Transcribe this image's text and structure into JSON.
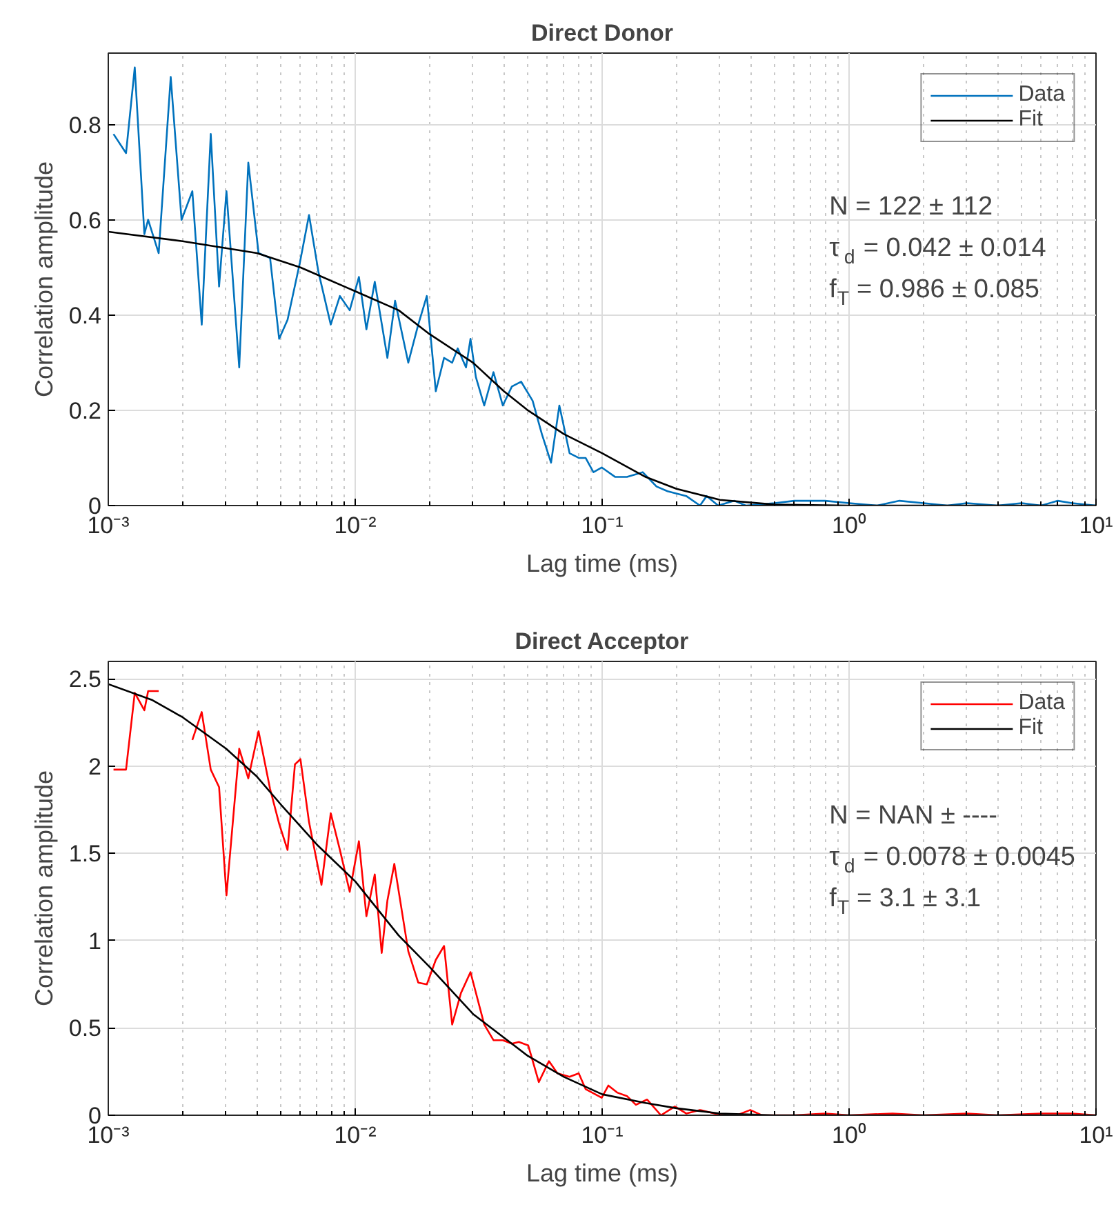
{
  "chart_data": [
    {
      "type": "line",
      "title": "Direct Donor",
      "xlabel": "Lag time (ms)",
      "ylabel": "Correlation amplitude",
      "log": "x",
      "grid": true,
      "legend": "top right",
      "xlim": [
        0.001,
        10
      ],
      "xticks": [
        {
          "value": 0.001,
          "label": "10⁻³"
        },
        {
          "value": 0.01,
          "label": "10⁻²"
        },
        {
          "value": 0.1,
          "label": "10⁻¹"
        },
        {
          "value": 1,
          "label": "10⁰"
        },
        {
          "value": 10,
          "label": "10¹"
        }
      ],
      "ylim": [
        0,
        0.95
      ],
      "yticks": [
        0,
        0.2,
        0.4,
        0.6,
        0.8
      ],
      "series": [
        {
          "name": "Data",
          "color": "#0072bd",
          "x": [
            0.00105,
            0.00118,
            0.00128,
            0.0014,
            0.00145,
            0.0016,
            0.00179,
            0.00198,
            0.00219,
            0.00239,
            0.0026,
            0.00281,
            0.00301,
            0.00339,
            0.00369,
            0.00406,
            0.00452,
            0.00492,
            0.00532,
            0.00597,
            0.0065,
            0.0071,
            0.00796,
            0.00867,
            0.0095,
            0.01035,
            0.0111,
            0.012,
            0.0135,
            0.0145,
            0.0164,
            0.018,
            0.0195,
            0.0212,
            0.0229,
            0.0247,
            0.026,
            0.0281,
            0.0293,
            0.0308,
            0.0333,
            0.0363,
            0.0396,
            0.0431,
            0.047,
            0.0523,
            0.057,
            0.0621,
            0.0671,
            0.0738,
            0.0804,
            0.0857,
            0.0922,
            0.0996,
            0.113,
            0.126,
            0.146,
            0.166,
            0.184,
            0.219,
            0.249,
            0.265,
            0.295,
            0.343,
            0.382,
            0.5,
            0.6,
            0.8,
            1,
            1.3,
            1.6,
            2,
            2.5,
            3,
            4,
            5,
            6,
            7,
            8,
            10
          ],
          "values": [
            0.78,
            0.74,
            0.92,
            0.57,
            0.6,
            0.53,
            0.9,
            0.6,
            0.66,
            0.38,
            0.78,
            0.46,
            0.66,
            0.29,
            0.72,
            0.53,
            0.52,
            0.35,
            0.39,
            0.51,
            0.61,
            0.49,
            0.38,
            0.44,
            0.41,
            0.48,
            0.37,
            0.47,
            0.31,
            0.43,
            0.3,
            0.38,
            0.44,
            0.24,
            0.31,
            0.3,
            0.33,
            0.29,
            0.35,
            0.27,
            0.21,
            0.28,
            0.21,
            0.25,
            0.26,
            0.22,
            0.15,
            0.09,
            0.21,
            0.11,
            0.1,
            0.1,
            0.07,
            0.08,
            0.06,
            0.06,
            0.07,
            0.04,
            0.03,
            0.02,
            0.0,
            0.02,
            0.0,
            0.01,
            0.0,
            0.005,
            0.01,
            0.01,
            0.005,
            0.0,
            0.01,
            0.005,
            0.0,
            0.005,
            0.0,
            0.005,
            0.0,
            0.01,
            0.005,
            0.0
          ]
        },
        {
          "name": "Fit",
          "color": "#000000",
          "x": [
            0.001,
            0.002,
            0.004,
            0.006,
            0.01,
            0.015,
            0.02,
            0.03,
            0.04,
            0.05,
            0.07,
            0.1,
            0.15,
            0.2,
            0.3,
            0.5,
            1,
            10
          ],
          "values": [
            0.575,
            0.555,
            0.53,
            0.5,
            0.45,
            0.41,
            0.36,
            0.3,
            0.24,
            0.2,
            0.15,
            0.11,
            0.06,
            0.035,
            0.012,
            0.002,
            0,
            0
          ]
        }
      ],
      "annotations": [
        "N = 122 ± 112",
        "τ$_{d}$ = 0.042 ± 0.014",
        "f$_{T}$ = 0.986 ± 0.085"
      ]
    },
    {
      "type": "line",
      "title": "Direct Acceptor",
      "xlabel": "Lag time (ms)",
      "ylabel": "Correlation amplitude",
      "log": "x",
      "grid": true,
      "legend": "top right",
      "xlim": [
        0.001,
        10
      ],
      "xticks": [
        {
          "value": 0.001,
          "label": "10⁻³"
        },
        {
          "value": 0.01,
          "label": "10⁻²"
        },
        {
          "value": 0.1,
          "label": "10⁻¹"
        },
        {
          "value": 1,
          "label": "10⁰"
        },
        {
          "value": 10,
          "label": "10¹"
        }
      ],
      "ylim": [
        0,
        2.6
      ],
      "yticks": [
        0,
        0.5,
        1,
        1.5,
        2,
        2.5
      ],
      "series": [
        {
          "name": "Data",
          "color": "#ff0000",
          "x": [
            0.00105,
            0.00118,
            0.00128,
            0.0014,
            0.00145,
            0.0016,
            0.00179,
            0.00198,
            0.00219,
            0.00239,
            0.0026,
            0.00281,
            0.00301,
            0.00339,
            0.00369,
            0.00406,
            0.00452,
            0.00492,
            0.00532,
            0.0057,
            0.006,
            0.0065,
            0.0073,
            0.00796,
            0.00867,
            0.0095,
            0.01035,
            0.0111,
            0.012,
            0.0128,
            0.0135,
            0.0144,
            0.0164,
            0.018,
            0.0195,
            0.0212,
            0.0229,
            0.0247,
            0.0268,
            0.0293,
            0.0333,
            0.0363,
            0.0396,
            0.0431,
            0.046,
            0.0502,
            0.0554,
            0.0609,
            0.0659,
            0.0738,
            0.0804,
            0.0857,
            0.0996,
            0.106,
            0.115,
            0.126,
            0.137,
            0.152,
            0.173,
            0.197,
            0.219,
            0.249,
            0.295,
            0.351,
            0.398,
            0.443,
            0.6,
            0.8,
            1,
            1.5,
            2,
            3,
            4,
            6,
            8,
            10
          ],
          "values": [
            1.98,
            1.98,
            2.42,
            2.32,
            2.43,
            2.43,
            null,
            null,
            2.15,
            2.31,
            1.98,
            1.88,
            1.26,
            2.1,
            1.93,
            2.2,
            1.87,
            1.67,
            1.52,
            2.01,
            2.04,
            1.68,
            1.32,
            1.73,
            1.52,
            1.28,
            1.57,
            1.14,
            1.38,
            0.93,
            1.23,
            1.44,
            0.94,
            0.76,
            0.75,
            0.89,
            0.97,
            0.52,
            0.7,
            0.82,
            0.52,
            0.43,
            0.43,
            0.41,
            0.42,
            0.4,
            0.19,
            0.31,
            0.24,
            0.22,
            0.24,
            0.15,
            0.1,
            0.17,
            0.13,
            0.11,
            0.06,
            0.09,
            0.0,
            0.05,
            0.01,
            0.03,
            0.005,
            0.0,
            0.03,
            0.0,
            0.0,
            0.01,
            0.0,
            0.01,
            0.0,
            0.01,
            0.0,
            0.01,
            0.01,
            0.0
          ]
        },
        {
          "name": "Fit",
          "color": "#000000",
          "x": [
            0.001,
            0.0015,
            0.002,
            0.003,
            0.004,
            0.005,
            0.007,
            0.01,
            0.015,
            0.02,
            0.03,
            0.05,
            0.07,
            0.1,
            0.15,
            0.2,
            0.3,
            0.5,
            1,
            10
          ],
          "values": [
            2.47,
            2.38,
            2.28,
            2.1,
            1.94,
            1.78,
            1.55,
            1.34,
            1.03,
            0.85,
            0.58,
            0.34,
            0.22,
            0.12,
            0.07,
            0.04,
            0.01,
            0.0,
            0,
            0
          ]
        }
      ],
      "annotations": [
        "N = NAN ± ----",
        "τ$_{d}$ = 0.0078 ± 0.0045",
        "f$_{T}$ = 3.1 ± 3.1"
      ]
    }
  ]
}
